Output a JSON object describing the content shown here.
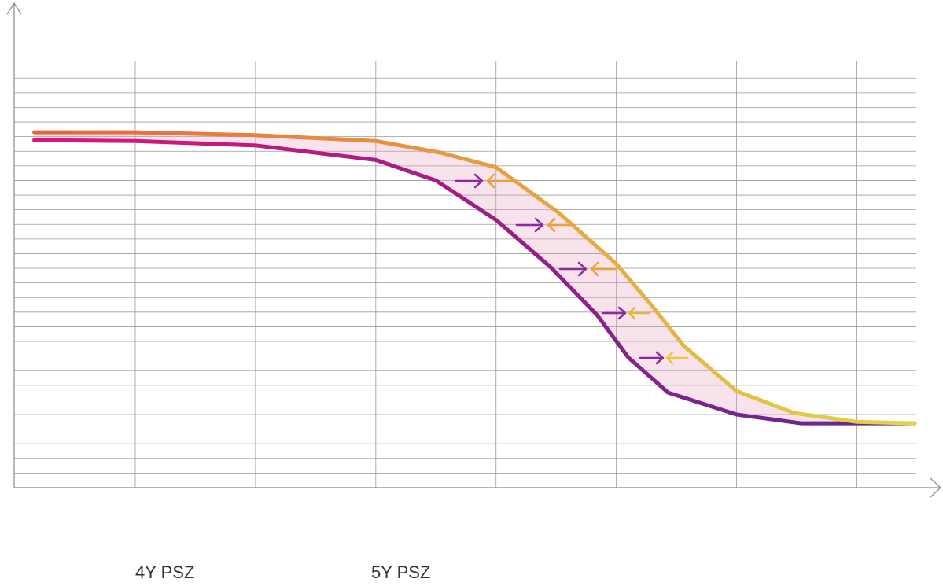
{
  "chart_data": {
    "type": "line",
    "series": [
      {
        "name": "4Y PSZ",
        "color": [
          "#e0147a",
          "#5b2a8e"
        ],
        "x": [
          0.16,
          1.0,
          2.0,
          3.0,
          3.5,
          4.0,
          4.45,
          4.84,
          5.1,
          5.43,
          6.0,
          6.54,
          7.48
        ],
        "values": [
          23.76,
          23.7,
          23.4,
          22.4,
          21.0,
          18.3,
          15.1,
          11.8,
          8.9,
          6.5,
          5.0,
          4.4,
          4.4
        ]
      },
      {
        "name": "5Y PSZ",
        "color": [
          "#e8643c",
          "#e2d644"
        ],
        "x": [
          0.16,
          1.0,
          2.0,
          3.0,
          3.54,
          4.0,
          4.52,
          5.0,
          5.3,
          5.56,
          6.0,
          6.48,
          7.0,
          7.48
        ],
        "values": [
          24.3,
          24.3,
          24.1,
          23.7,
          22.9,
          21.9,
          18.8,
          15.3,
          12.4,
          9.7,
          6.6,
          5.1,
          4.5,
          4.4
        ]
      }
    ],
    "xlim": [
      -0.007,
      7.69
    ],
    "ylim": [
      0,
      32.8
    ],
    "xticks": [
      1,
      2,
      3,
      4,
      5,
      6,
      7
    ],
    "yticks": [
      1,
      2,
      3,
      4,
      5,
      6,
      7,
      8,
      9,
      10,
      11,
      12,
      13,
      14,
      15,
      16,
      17,
      18,
      19,
      20,
      21,
      22,
      23,
      24,
      25,
      26,
      27,
      28
    ],
    "grid": true
  }
}
